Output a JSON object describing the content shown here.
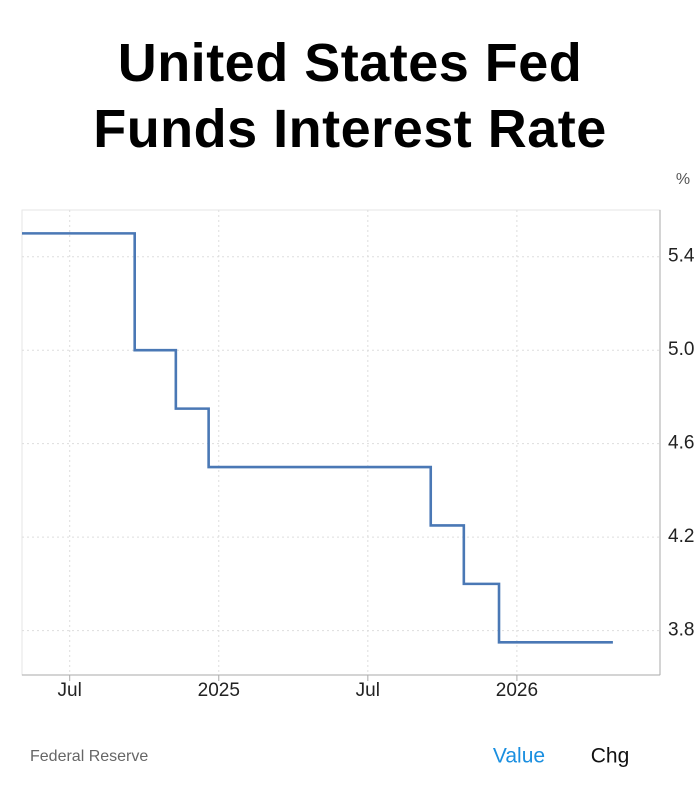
{
  "chart_data": {
    "type": "line",
    "step": "post",
    "title": "United States Fed Funds Interest Rate",
    "y_unit": "%",
    "source": "Federal Reserve",
    "tabs": [
      "Value",
      "Chg"
    ],
    "x": [
      2024.34,
      2024.718,
      2024.856,
      2024.966,
      2025.711,
      2025.822,
      2025.94,
      2026.322
    ],
    "series": [
      {
        "color": "#4a78b5",
        "values": [
          5.5,
          5,
          4.75,
          4.5,
          4.25,
          4,
          3.75,
          3.75
        ]
      }
    ],
    "xlim": [
      2024.34,
      2026.48
    ],
    "xticks": [
      {
        "value": 2024.5,
        "label": "Jul"
      },
      2025,
      {
        "value": 2025.5,
        "label": "Jul"
      },
      2026
    ],
    "ylim": [
      3.61,
      5.6
    ],
    "yticks": [
      3.8,
      4.2,
      4.6,
      {
        "value": 5,
        "label": "5.0"
      },
      5.4
    ],
    "grid": true
  }
}
